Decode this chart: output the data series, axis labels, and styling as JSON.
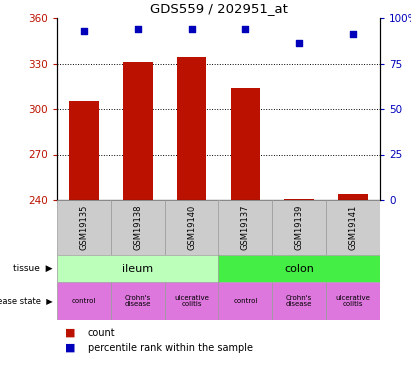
{
  "title": "GDS559 / 202951_at",
  "samples": [
    "GSM19135",
    "GSM19138",
    "GSM19140",
    "GSM19137",
    "GSM19139",
    "GSM19141"
  ],
  "bar_values": [
    305,
    331,
    334,
    314,
    240.5,
    244
  ],
  "percentile_values": [
    93,
    94,
    94,
    94,
    86,
    91
  ],
  "ylim_left": [
    240,
    360
  ],
  "ylim_right": [
    0,
    100
  ],
  "yticks_left": [
    240,
    270,
    300,
    330,
    360
  ],
  "yticks_right": [
    0,
    25,
    50,
    75,
    100
  ],
  "ytick_labels_right": [
    "0",
    "25",
    "50",
    "75",
    "100%"
  ],
  "bar_color": "#bb1100",
  "dot_color": "#0000bb",
  "tissue_ileum_color": "#bbffbb",
  "tissue_colon_color": "#44ee44",
  "disease_color": "#dd77dd",
  "sample_box_color": "#cccccc",
  "grid_color": "#000000",
  "background_color": "#ffffff",
  "legend_count_color": "#bb1100",
  "legend_pct_color": "#0000bb"
}
